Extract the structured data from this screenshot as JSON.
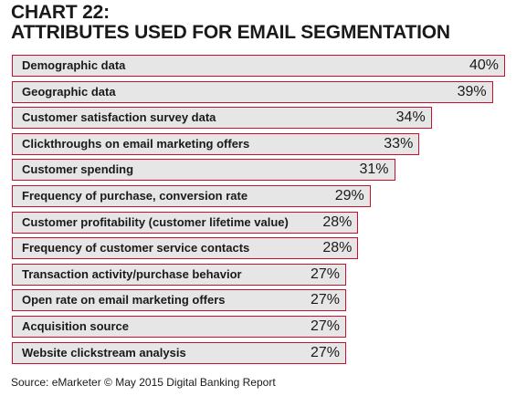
{
  "title_line1": "CHART 22:",
  "title_line2": "ATTRIBUTES USED FOR EMAIL SEGMENTATION",
  "source": "Source: eMarketer © May 2015 Digital Banking Report",
  "colors": {
    "bar_fill": "#e6e6e6",
    "bar_border": "#c8102e",
    "text": "#1a1a1a"
  },
  "chart_data": {
    "type": "bar",
    "orientation": "horizontal",
    "categories": [
      "Demographic data",
      "Geographic data",
      "Customer satisfaction survey data",
      "Clickthroughs on email marketing offers",
      "Customer spending",
      "Frequency of purchase, conversion rate",
      "Customer profitability (customer lifetime value)",
      "Frequency of customer service contacts",
      "Transaction activity/purchase behavior",
      "Open rate on email marketing offers",
      "Acquisition source",
      "Website clickstream analysis"
    ],
    "values": [
      40,
      39,
      34,
      33,
      31,
      29,
      28,
      28,
      27,
      27,
      27,
      27
    ],
    "value_labels": [
      "40%",
      "39%",
      "34%",
      "33%",
      "31%",
      "29%",
      "28%",
      "28%",
      "27%",
      "27%",
      "27%",
      "27%"
    ],
    "unit": "%",
    "title": "CHART 22: ATTRIBUTES USED FOR EMAIL SEGMENTATION",
    "xlabel": "",
    "ylabel": "",
    "grid": false,
    "legend": "none"
  }
}
